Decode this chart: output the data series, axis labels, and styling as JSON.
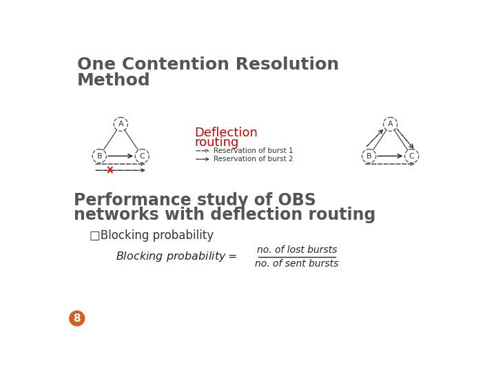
{
  "title_line1": "One Contention Resolution",
  "title_line2": "Method",
  "title_color": "#555555",
  "title_fontsize": 18,
  "deflection_text_1": "Deflection",
  "deflection_text_2": "routing",
  "deflection_color": "#cc0000",
  "deflection_fontsize": 13,
  "perf_line1": "Performance study of OBS",
  "perf_line2": "networks with deflection routing",
  "perf_color": "#555555",
  "perf_fontsize": 17,
  "bullet_text": "□Blocking probability",
  "bullet_fontsize": 12,
  "numerator": "no. of lost bursts",
  "denominator": "no. of sent bursts",
  "slide_number": "8",
  "bg_color": "#ffffff",
  "legend1": "Reservation of burst 1",
  "legend2": "Reservation of burst 2",
  "node_fill": "#ffffff",
  "node_edge": "#555555",
  "badge_color": "#d45f1e"
}
